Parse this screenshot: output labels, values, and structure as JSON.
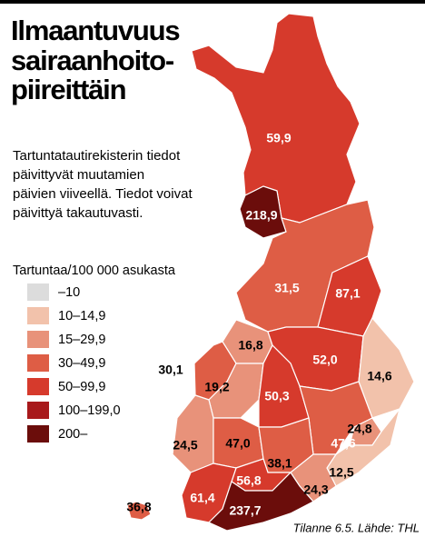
{
  "header": {
    "title_lines": [
      "Ilmaantuvuus",
      "sairaanhoito-",
      "piireittäin"
    ],
    "description_lines": [
      "Tartuntatautirekisterin tiedot",
      "päivittyvät muutamien",
      "päivien viiveellä. Tiedot voivat",
      "päivittyä takautuvasti."
    ]
  },
  "legend": {
    "title": "Tartuntaa/100 000 asukasta",
    "items": [
      {
        "label": "–10",
        "color": "#dcdcdc"
      },
      {
        "label": "10–14,9",
        "color": "#f2c2ab"
      },
      {
        "label": "15–29,9",
        "color": "#e8927a"
      },
      {
        "label": "30–49,9",
        "color": "#de5d45"
      },
      {
        "label": "50–99,9",
        "color": "#d63a2c"
      },
      {
        "label": "100–199,0",
        "color": "#a8191b"
      },
      {
        "label": "200–",
        "color": "#6b0d0b"
      }
    ]
  },
  "map": {
    "regions": [
      {
        "label": "59,9",
        "color": "#d63a2c"
      },
      {
        "label": "218,9",
        "color": "#6b0d0b"
      },
      {
        "label": "31,5",
        "color": "#de5d45"
      },
      {
        "label": "87,1",
        "color": "#d63a2c"
      },
      {
        "label": "16,8",
        "color": "#e8927a"
      },
      {
        "label": "30,1",
        "color": "#de5d45"
      },
      {
        "label": "19,2",
        "color": "#e8927a"
      },
      {
        "label": "52,0",
        "color": "#d63a2c"
      },
      {
        "label": "14,6",
        "color": "#f2c2ab"
      },
      {
        "label": "50,3",
        "color": "#d63a2c"
      },
      {
        "label": "47,6",
        "color": "#de5d45"
      },
      {
        "label": "24,8",
        "color": "#e8927a"
      },
      {
        "label": "24,5",
        "color": "#e8927a"
      },
      {
        "label": "47,0",
        "color": "#de5d45"
      },
      {
        "label": "38,1",
        "color": "#de5d45"
      },
      {
        "label": "12,5",
        "color": "#f2c2ab"
      },
      {
        "label": "24,3",
        "color": "#e8927a"
      },
      {
        "label": "56,8",
        "color": "#d63a2c"
      },
      {
        "label": "61,4",
        "color": "#d63a2c"
      },
      {
        "label": "237,7",
        "color": "#6b0d0b"
      },
      {
        "label": "36,8",
        "color": "#de5d45"
      }
    ]
  },
  "footer": {
    "source": "Tilanne 6.5. Lähde: THL"
  }
}
